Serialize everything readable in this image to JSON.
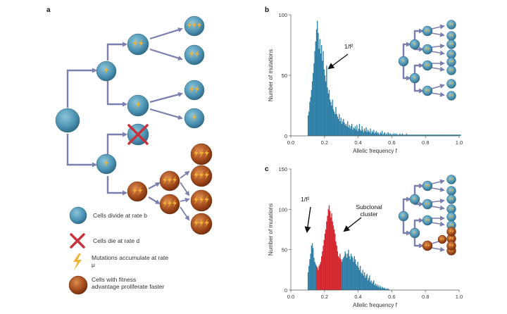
{
  "panels": {
    "a": {
      "letter": "a",
      "legend": [
        {
          "icon": "blue-cell-icon",
          "text": "Cells divide at rate b"
        },
        {
          "icon": "red-cross-icon",
          "text": "Cells die at rate d"
        },
        {
          "icon": "lightning-icon",
          "text": "Mutations accumulate at rate μ"
        },
        {
          "icon": "brown-cell-icon",
          "text": "Cells with fitness advantage proliferate faster"
        }
      ]
    },
    "b": {
      "letter": "b",
      "annotation": "1/f²"
    },
    "c": {
      "letter": "c",
      "annotation_left": "1/f²",
      "annotation_right": "Subclonal cluster"
    }
  },
  "colors": {
    "blue_cell": "#4a90b0",
    "brown_cell": "#a0481a",
    "bar_blue": "#2f7fa6",
    "bar_red": "#d4262e",
    "arrow": "#7a7fae",
    "lightning": "#f2b233",
    "cross": "#c8323a"
  },
  "chart_data": [
    {
      "type": "bar",
      "panel": "b",
      "xlabel": "Allelic frequency f",
      "ylabel": "Number of mutations",
      "xlim": [
        0,
        1
      ],
      "ylim": [
        0,
        100
      ],
      "xticks": [
        0.0,
        0.2,
        0.4,
        0.6,
        0.8,
        1.0
      ],
      "yticks": [
        0,
        50,
        100
      ],
      "bin_start": 0.1,
      "bin_width": 0.005,
      "values": [
        17,
        20,
        28,
        32,
        38,
        45,
        52,
        60,
        70,
        78,
        88,
        95,
        85,
        72,
        80,
        68,
        75,
        62,
        70,
        55,
        50,
        45,
        58,
        40,
        35,
        38,
        30,
        28,
        25,
        30,
        22,
        20,
        18,
        24,
        18,
        16,
        14,
        18,
        12,
        15,
        10,
        12,
        14,
        11,
        9,
        10,
        8,
        12,
        7,
        9,
        6,
        8,
        10,
        5,
        7,
        6,
        8,
        5,
        9,
        4,
        6,
        10,
        5,
        4,
        8,
        5,
        3,
        6,
        4,
        7,
        3,
        5,
        4,
        3,
        6,
        2,
        4,
        3,
        5,
        2,
        3,
        4,
        2,
        3,
        2,
        1,
        3,
        2,
        4,
        1,
        2,
        3,
        1,
        2,
        1,
        3,
        2,
        1,
        2,
        1,
        1,
        2,
        1,
        2,
        1,
        2,
        1,
        1,
        1,
        2,
        1,
        1,
        2,
        1,
        1,
        1,
        1,
        2,
        1,
        1,
        1,
        1,
        1,
        1,
        1,
        1,
        1,
        1,
        1,
        1,
        1,
        1,
        1,
        1,
        1,
        1,
        1,
        1,
        1,
        1,
        1,
        1,
        1,
        1,
        1,
        1,
        1,
        1,
        1,
        1,
        1,
        1,
        1,
        1,
        1,
        1,
        1,
        1,
        1,
        1,
        1,
        1,
        1,
        1,
        1,
        1,
        1,
        1,
        1,
        1,
        1,
        1,
        1,
        1,
        1,
        1,
        1,
        1,
        1,
        1,
        1,
        1
      ]
    },
    {
      "type": "bar",
      "panel": "c",
      "xlabel": "Allelic frequency f",
      "ylabel": "Number of mutations",
      "xlim": [
        0,
        1
      ],
      "ylim": [
        0,
        150
      ],
      "xticks": [
        0.0,
        0.2,
        0.4,
        0.6,
        0.8,
        1.0
      ],
      "yticks": [
        0,
        50,
        100,
        150
      ],
      "bin_start": 0.1,
      "bin_width": 0.005,
      "values": [
        22,
        30,
        38,
        45,
        55,
        58,
        52,
        40,
        35,
        32,
        30,
        28,
        25,
        30,
        32,
        35,
        42,
        48,
        55,
        62,
        70,
        75,
        85,
        92,
        100,
        105,
        98,
        90,
        95,
        85,
        80,
        75,
        70,
        60,
        55,
        48,
        42,
        40,
        45,
        38,
        35,
        38,
        40,
        42,
        48,
        45,
        40,
        45,
        50,
        42,
        38,
        45,
        42,
        40,
        35,
        42,
        38,
        32,
        30,
        35,
        28,
        25,
        30,
        22,
        20,
        25,
        18,
        22,
        15,
        18,
        20,
        12,
        15,
        18,
        10,
        12,
        8,
        10,
        12,
        6,
        8,
        5,
        7,
        4,
        6,
        3,
        5,
        2,
        4,
        3,
        2,
        3,
        1,
        2,
        1,
        2,
        1
      ],
      "highlight_range": [
        0.15,
        0.3
      ]
    }
  ]
}
